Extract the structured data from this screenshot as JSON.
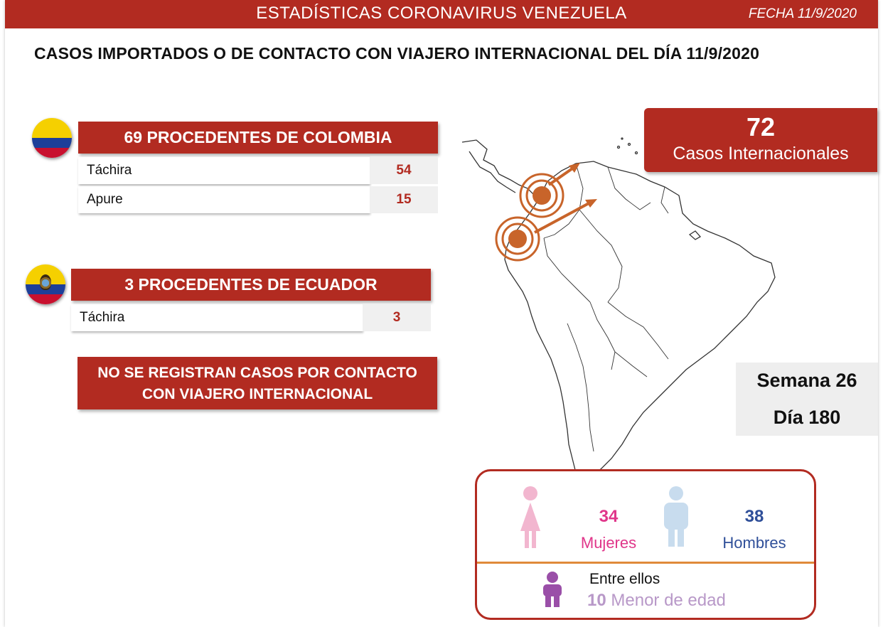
{
  "header": {
    "title": "ESTADÍSTICAS CORONAVIRUS VENEZUELA",
    "date": "FECHA 11/9/2020"
  },
  "main_title": "CASOS IMPORTADOS O DE CONTACTO CON VIAJERO INTERNACIONAL DEL DÍA  11/9/2020",
  "colombia": {
    "title": "69 PROCEDENTES DE COLOMBIA",
    "rows": [
      {
        "state": "Táchira",
        "count": "54"
      },
      {
        "state": "Apure",
        "count": "15"
      }
    ]
  },
  "ecuador": {
    "title": "3 PROCEDENTES DE ECUADOR",
    "rows": [
      {
        "state": "Táchira",
        "count": "3"
      }
    ]
  },
  "notice": {
    "line1": "NO SE REGISTRAN CASOS POR CONTACTO",
    "line2": "CON VIAJERO INTERNACIONAL"
  },
  "international": {
    "count": "72",
    "label": "Casos Internacionales"
  },
  "calendar": {
    "week": "Semana 26",
    "day": "Día 180"
  },
  "gender": {
    "women_count": "34",
    "women_label": "Mujeres",
    "men_count": "38",
    "men_label": "Hombres",
    "minor_intro": "Entre ellos",
    "minor_count": "10",
    "minor_label": "Menor de edad"
  },
  "colors": {
    "brand_red": "#b22b21",
    "women": "#e0368a",
    "men": "#2f4f99",
    "minor": "#b898c8",
    "arrow": "#c8642a"
  },
  "icons": [
    "colombia-flag-icon",
    "ecuador-flag-icon",
    "woman-icon",
    "man-icon",
    "child-icon"
  ]
}
